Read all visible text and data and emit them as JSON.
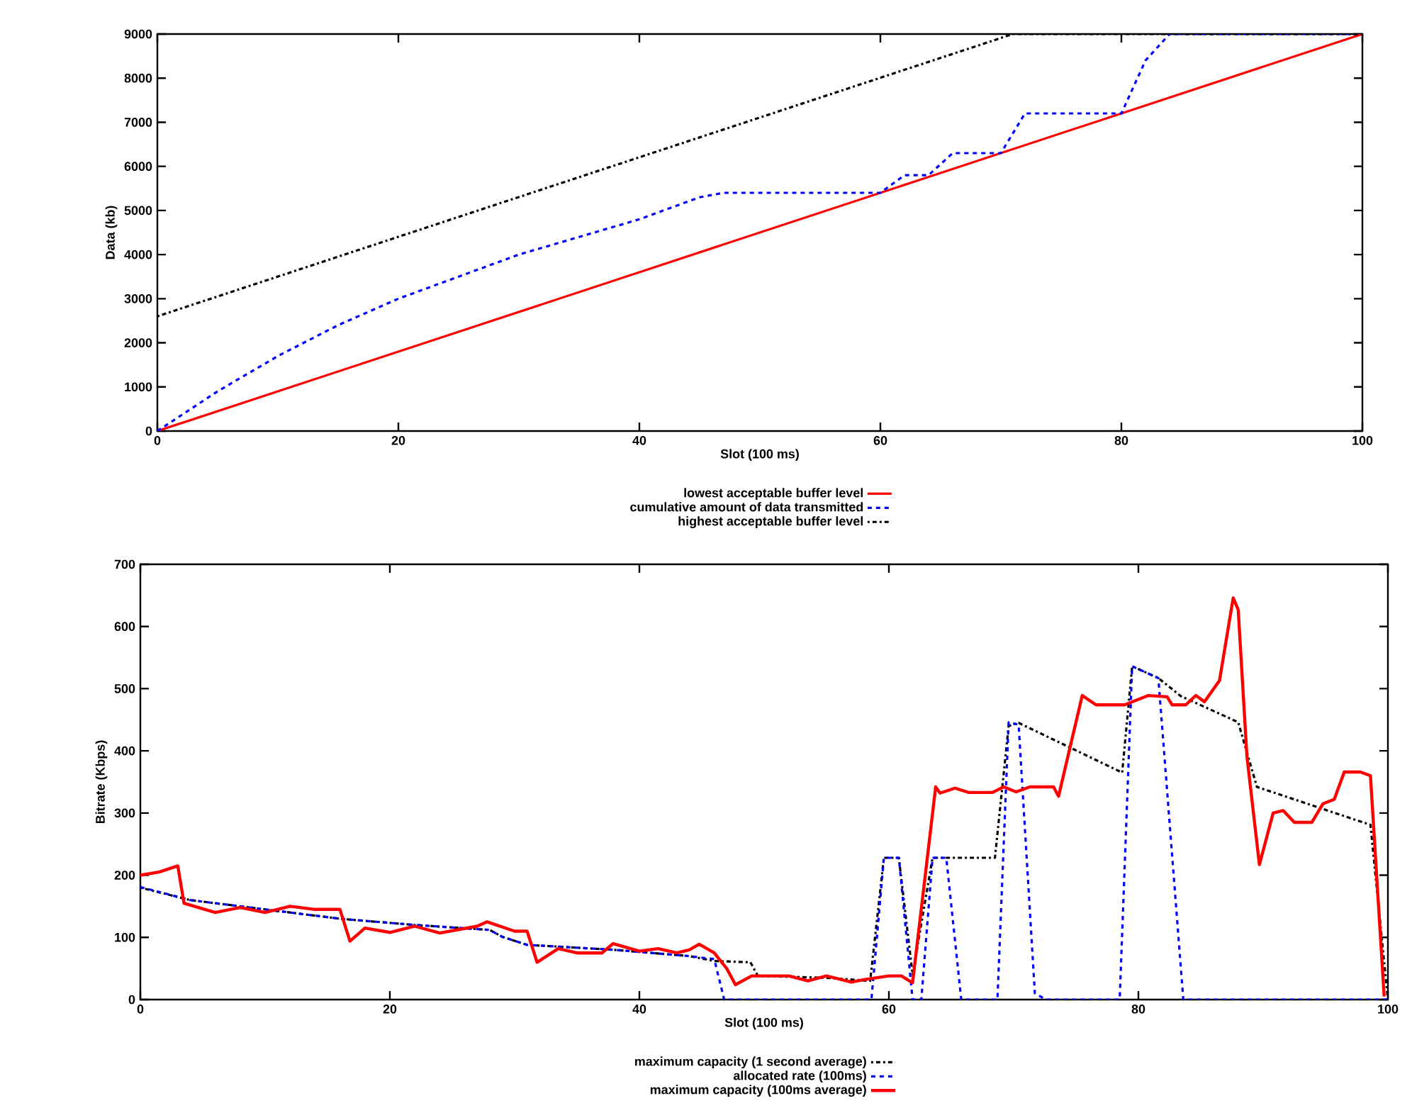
{
  "chart_data": [
    {
      "type": "line",
      "xlabel": "Slot (100 ms)",
      "ylabel": "Data (kb)",
      "xlim": [
        0,
        100
      ],
      "ylim": [
        0,
        9000
      ],
      "xticks": [
        0,
        20,
        40,
        60,
        80,
        100
      ],
      "yticks": [
        0,
        1000,
        2000,
        3000,
        4000,
        5000,
        6000,
        7000,
        8000,
        9000
      ],
      "legend": "bottom",
      "marker": "none",
      "grid": false,
      "series": [
        {
          "name": "lowest acceptable buffer level",
          "color": "#ff0000",
          "line_style": "solid",
          "x": [
            0,
            20,
            40,
            60,
            80,
            100
          ],
          "values": [
            0,
            1800,
            3600,
            5400,
            7200,
            9000
          ]
        },
        {
          "name": "cumulative amount of data transmitted",
          "color": "#0000ff",
          "line_style": "dashed",
          "x": [
            0,
            5,
            10,
            15,
            20,
            25,
            30,
            35,
            40,
            45,
            47,
            60,
            62,
            64,
            66,
            70,
            72,
            80,
            82,
            84,
            100
          ],
          "values": [
            0,
            900,
            1700,
            2400,
            3000,
            3500,
            4000,
            4400,
            4800,
            5300,
            5400,
            5400,
            5800,
            5800,
            6300,
            6300,
            7200,
            7200,
            8400,
            9000,
            9000
          ]
        },
        {
          "name": "highest acceptable buffer level",
          "color": "#000000",
          "line_style": "dotted",
          "x": [
            0,
            71,
            100
          ],
          "values": [
            2600,
            9000,
            9000
          ]
        }
      ]
    },
    {
      "type": "line",
      "xlabel": "Slot (100 ms)",
      "ylabel": "Bitrate (Kbps)",
      "xlim": [
        0,
        100
      ],
      "ylim": [
        0,
        700
      ],
      "xticks": [
        0,
        20,
        40,
        60,
        80,
        100
      ],
      "yticks": [
        0,
        100,
        200,
        300,
        400,
        500,
        600,
        700
      ],
      "legend": "bottom",
      "marker": "none",
      "grid": false,
      "series": [
        {
          "name": "maximum capacity (1 second average)",
          "color": "#000000",
          "line_style": "dotted",
          "x": [
            0,
            4,
            10,
            16,
            22,
            28,
            29,
            31,
            38,
            44,
            46,
            48.9,
            49.5,
            55,
            58.5,
            59.6,
            60.8,
            61.9,
            63.5,
            68.5,
            69.6,
            70.4,
            78.7,
            79.5,
            81.6,
            83.4,
            88,
            89.5,
            98.6,
            100
          ],
          "values": [
            180,
            160,
            145,
            130,
            120,
            112,
            101,
            88,
            80,
            70,
            62,
            60,
            38,
            35,
            30,
            228,
            228,
            40,
            228,
            228,
            440,
            445,
            365,
            536,
            517,
            488,
            446,
            342,
            281,
            0
          ]
        },
        {
          "name": "allocated rate (100ms)",
          "color": "#0000ff",
          "line_style": "dashed",
          "x": [
            0,
            4,
            10,
            16,
            22,
            28,
            29,
            31,
            38,
            44,
            46,
            46.8,
            58.6,
            59.6,
            60.8,
            61.9,
            62.6,
            63.5,
            64.6,
            65.8,
            68.7,
            69.6,
            70.4,
            71.7,
            72.6,
            78.5,
            79.5,
            81.6,
            83.6,
            100
          ],
          "values": [
            181,
            160,
            145,
            130,
            120,
            112,
            101,
            88,
            80,
            70,
            65,
            0,
            0,
            228,
            228,
            0,
            0,
            228,
            228,
            0,
            0,
            446,
            442,
            10,
            0,
            0,
            536,
            517,
            0,
            0
          ]
        },
        {
          "name": "maximum capacity (100ms average)",
          "color": "#ff0000",
          "line_style": "solid",
          "x": [
            0,
            1.5,
            3,
            3.5,
            6,
            8,
            10,
            12,
            14,
            16,
            16.8,
            18,
            20,
            22,
            24,
            27,
            27.8,
            30,
            31,
            31.8,
            33.5,
            35,
            37,
            37.9,
            40,
            41.5,
            43,
            44,
            44.8,
            46,
            47,
            47.7,
            49,
            52,
            53.5,
            55,
            57,
            58,
            60,
            61,
            61.9,
            63.75,
            64.1,
            65.3,
            66.4,
            68.3,
            69.2,
            70.2,
            71.3,
            73.2,
            73.6,
            75.5,
            76.6,
            78.9,
            80.8,
            82.3,
            82.7,
            83.8,
            84.6,
            85.3,
            86.5,
            87.6,
            88.0,
            88.7,
            89.7,
            90.8,
            91.6,
            92.5,
            93.9,
            94.8,
            95.7,
            96.5,
            97.8,
            98.6,
            99.7
          ],
          "values": [
            200,
            205,
            215,
            155,
            140,
            148,
            140,
            150,
            145,
            145,
            94,
            115,
            108,
            118,
            107,
            118,
            125,
            110,
            110,
            60,
            82,
            75,
            75,
            90,
            78,
            82,
            75,
            80,
            89,
            75,
            50,
            24,
            38,
            38,
            30,
            38,
            28,
            32,
            38,
            38,
            27,
            342,
            332,
            340,
            333,
            333,
            342,
            334,
            342,
            342,
            327,
            489,
            474,
            474,
            489,
            487,
            474,
            474,
            489,
            479,
            513,
            646,
            627,
            391,
            217,
            300,
            304,
            285,
            285,
            315,
            322,
            366,
            366,
            360,
            5
          ]
        }
      ]
    }
  ]
}
